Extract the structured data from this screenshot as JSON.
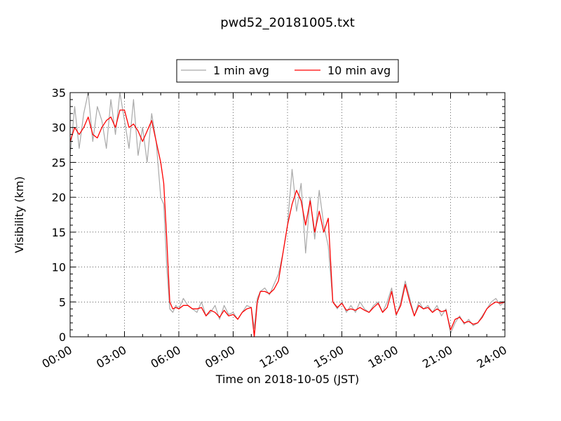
{
  "chart_data": {
    "type": "line",
    "title": "pwd52_20181005.txt",
    "xlabel": "Time on 2018-10-05 (JST)",
    "ylabel": "Visibility (km)",
    "xlim": [
      "00:00",
      "24:00"
    ],
    "ylim": [
      0,
      35
    ],
    "xticks": [
      "00:00",
      "03:00",
      "06:00",
      "09:00",
      "12:00",
      "15:00",
      "18:00",
      "21:00",
      "24:00"
    ],
    "yticks": [
      "0",
      "5",
      "10",
      "15",
      "20",
      "25",
      "30",
      "35"
    ],
    "grid": true,
    "grid_style": "dotted",
    "legend_position": "top-center",
    "series": [
      {
        "name": "1 min avg",
        "color": "#a9a9a9",
        "x": [
          "00:00",
          "00:15",
          "00:30",
          "00:45",
          "01:00",
          "01:15",
          "01:30",
          "01:45",
          "02:00",
          "02:15",
          "02:30",
          "02:45",
          "03:00",
          "03:15",
          "03:30",
          "03:45",
          "04:00",
          "04:15",
          "04:30",
          "04:45",
          "05:00",
          "05:10",
          "05:20",
          "05:30",
          "05:40",
          "05:50",
          "06:00",
          "06:15",
          "06:30",
          "06:45",
          "07:00",
          "07:15",
          "07:30",
          "07:45",
          "08:00",
          "08:15",
          "08:30",
          "08:45",
          "09:00",
          "09:15",
          "09:30",
          "09:45",
          "10:00",
          "10:10",
          "10:20",
          "10:30",
          "10:45",
          "11:00",
          "11:15",
          "11:30",
          "11:45",
          "12:00",
          "12:15",
          "12:30",
          "12:45",
          "13:00",
          "13:15",
          "13:30",
          "13:45",
          "14:00",
          "14:15",
          "14:30",
          "14:45",
          "15:00",
          "15:15",
          "15:30",
          "15:45",
          "16:00",
          "16:15",
          "16:30",
          "16:45",
          "17:00",
          "17:15",
          "17:30",
          "17:45",
          "18:00",
          "18:15",
          "18:30",
          "18:45",
          "19:00",
          "19:15",
          "19:30",
          "19:45",
          "20:00",
          "20:15",
          "20:30",
          "20:45",
          "21:00",
          "21:15",
          "21:30",
          "21:45",
          "22:00",
          "22:15",
          "22:30",
          "22:45",
          "23:00",
          "23:15",
          "23:30",
          "23:45",
          "24:00"
        ],
        "y": [
          26,
          33,
          27,
          32,
          35,
          28,
          33,
          31,
          27,
          34,
          29,
          35,
          31,
          27,
          34,
          26,
          30,
          25,
          32,
          28,
          20,
          19,
          10,
          4,
          3.5,
          4.5,
          4,
          5.5,
          4.5,
          4,
          3.5,
          5,
          3,
          3.5,
          4.5,
          2.5,
          4.5,
          3.2,
          3.5,
          2.5,
          3.5,
          4.5,
          4.2,
          1.2,
          5.5,
          6.5,
          7,
          6,
          7.5,
          9,
          12,
          16,
          24,
          18,
          22,
          12,
          20,
          14,
          21,
          16,
          13,
          5,
          4,
          5,
          3.5,
          4.5,
          3.5,
          5,
          4,
          3.5,
          4.5,
          5,
          3.5,
          5,
          7,
          3,
          5,
          8,
          5.5,
          3,
          5,
          4,
          4.5,
          3.5,
          4.5,
          3,
          4,
          0.5,
          2,
          3,
          1.8,
          2.5,
          1.6,
          2,
          3,
          4,
          5,
          5.5,
          4.5,
          5
        ]
      },
      {
        "name": "10 min avg",
        "color": "#ff0000",
        "x": [
          "00:00",
          "00:15",
          "00:30",
          "00:45",
          "01:00",
          "01:15",
          "01:30",
          "01:45",
          "02:00",
          "02:15",
          "02:30",
          "02:45",
          "03:00",
          "03:15",
          "03:30",
          "03:45",
          "04:00",
          "04:15",
          "04:30",
          "04:45",
          "05:00",
          "05:10",
          "05:20",
          "05:30",
          "05:40",
          "05:50",
          "06:00",
          "06:15",
          "06:30",
          "06:45",
          "07:00",
          "07:15",
          "07:30",
          "07:45",
          "08:00",
          "08:15",
          "08:30",
          "08:45",
          "09:00",
          "09:15",
          "09:30",
          "09:45",
          "10:00",
          "10:10",
          "10:20",
          "10:30",
          "10:45",
          "11:00",
          "11:15",
          "11:30",
          "11:45",
          "12:00",
          "12:15",
          "12:30",
          "12:45",
          "13:00",
          "13:15",
          "13:30",
          "13:45",
          "14:00",
          "14:15",
          "14:30",
          "14:45",
          "15:00",
          "15:15",
          "15:30",
          "15:45",
          "16:00",
          "16:15",
          "16:30",
          "16:45",
          "17:00",
          "17:15",
          "17:30",
          "17:45",
          "18:00",
          "18:15",
          "18:30",
          "18:45",
          "19:00",
          "19:15",
          "19:30",
          "19:45",
          "20:00",
          "20:15",
          "20:30",
          "20:45",
          "21:00",
          "21:15",
          "21:30",
          "21:45",
          "22:00",
          "22:15",
          "22:30",
          "22:45",
          "23:00",
          "23:15",
          "23:30",
          "23:45",
          "24:00"
        ],
        "y": [
          28,
          30,
          29,
          30,
          31.5,
          29,
          28.5,
          30,
          31,
          31.5,
          30,
          32.5,
          32.5,
          30,
          30.5,
          29.5,
          28,
          29.5,
          31,
          28,
          25,
          22,
          14,
          5,
          4,
          4.2,
          4,
          4.5,
          4.5,
          4,
          4,
          4.2,
          3,
          3.8,
          3.5,
          2.8,
          3.8,
          3,
          3.2,
          2.5,
          3.5,
          4,
          4.2,
          0,
          5,
          6.5,
          6.5,
          6.2,
          6.8,
          8,
          12,
          16,
          19,
          21,
          19.5,
          16,
          19.5,
          15,
          18,
          15,
          17,
          5,
          4.2,
          4.8,
          3.8,
          4,
          3.8,
          4.2,
          3.8,
          3.5,
          4.2,
          4.8,
          3.5,
          4.2,
          6.5,
          3.2,
          4.5,
          7.5,
          5,
          3,
          4.5,
          4,
          4.2,
          3.5,
          4,
          3.6,
          3.8,
          1,
          2.5,
          2.8,
          2,
          2.2,
          1.8,
          2,
          2.8,
          4,
          4.6,
          5,
          4.8,
          5
        ]
      }
    ]
  }
}
